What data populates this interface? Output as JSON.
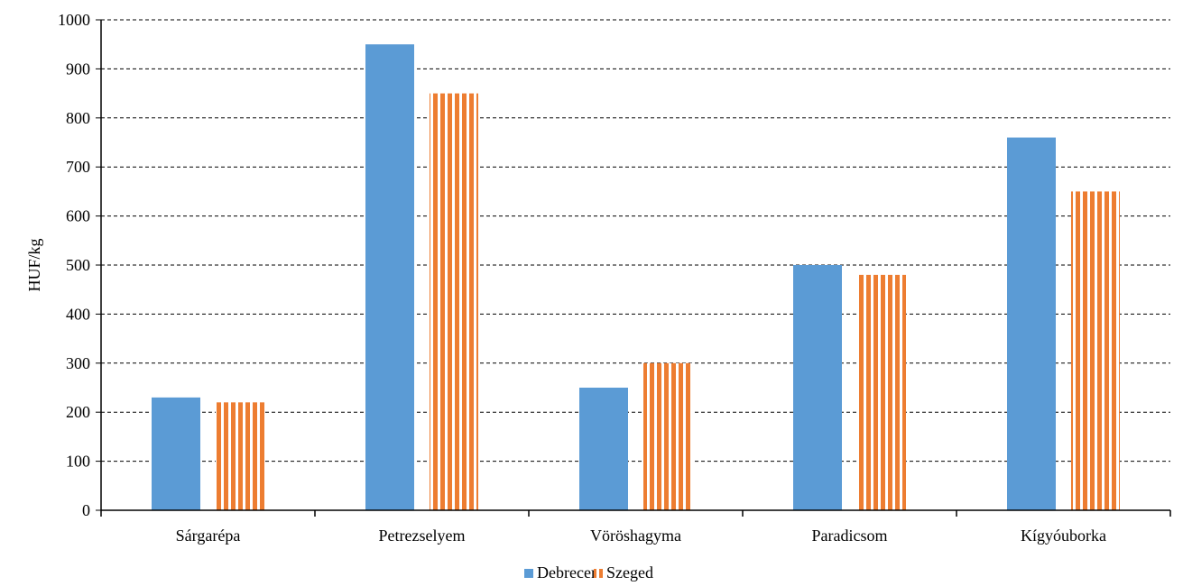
{
  "chart_data": {
    "type": "bar",
    "title": "",
    "xlabel": "",
    "ylabel": "HUF/kg",
    "ylim": [
      0,
      1000
    ],
    "yticks": [
      0,
      100,
      200,
      300,
      400,
      500,
      600,
      700,
      800,
      900,
      1000
    ],
    "categories": [
      "Sárgarépa",
      "Petrezselyem",
      "Vöröshagyma",
      "Paradicsom",
      "Kígyóuborka"
    ],
    "series": [
      {
        "name": "Debrecen",
        "values": [
          230,
          950,
          250,
          500,
          760
        ],
        "color": "#5b9bd5",
        "pattern": "solid"
      },
      {
        "name": "Szeged",
        "values": [
          220,
          850,
          300,
          480,
          650
        ],
        "color": "#ed7d31",
        "pattern": "vertical-stripes"
      }
    ],
    "grid": "horizontal-dashed",
    "legend": "bottom-center"
  }
}
